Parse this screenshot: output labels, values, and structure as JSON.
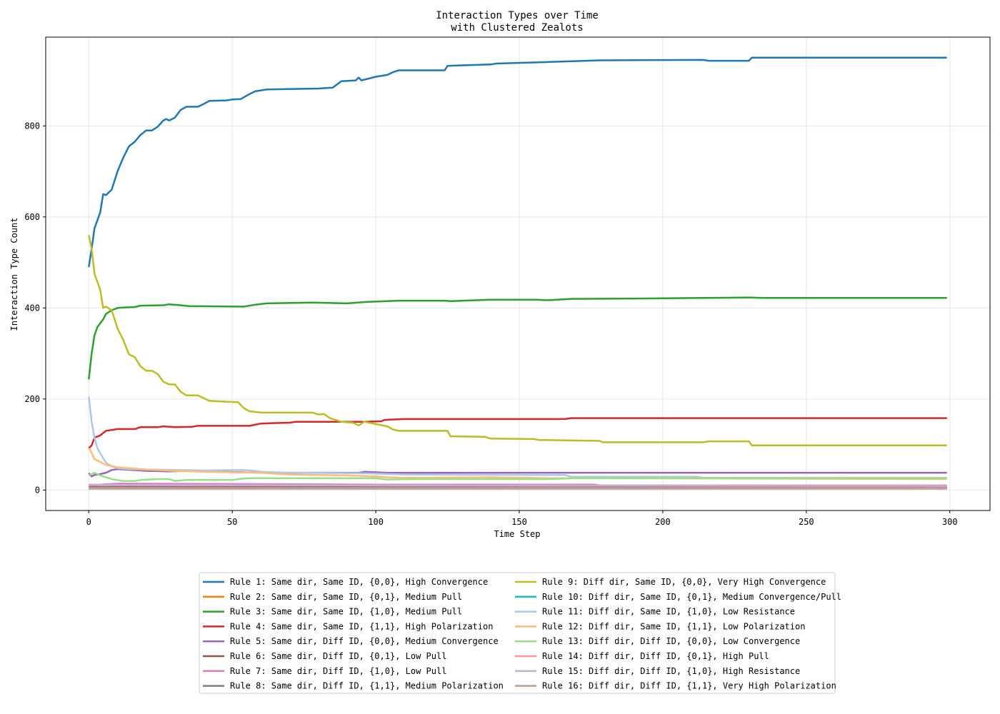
{
  "chart_data": {
    "type": "line",
    "title": [
      "Interaction Types over Time",
      "with Clustered Zealots"
    ],
    "xlabel": "Time Step",
    "ylabel": "Interaction Type Count",
    "xlim": [
      -15,
      314
    ],
    "ylim": [
      -45,
      995
    ],
    "xticks": [
      0,
      50,
      100,
      150,
      200,
      250,
      300
    ],
    "yticks": [
      0,
      200,
      400,
      600,
      800
    ],
    "grid": true,
    "legend_position": "bottom-center, 2 columns",
    "series": [
      {
        "name": "Rule 1: Same dir, Same ID, {0,0}, High Convergence",
        "color": "#1f77b4",
        "points": [
          [
            0,
            490
          ],
          [
            1,
            530
          ],
          [
            2,
            575
          ],
          [
            4,
            610
          ],
          [
            5,
            650
          ],
          [
            6,
            648
          ],
          [
            8,
            660
          ],
          [
            10,
            700
          ],
          [
            12,
            730
          ],
          [
            14,
            755
          ],
          [
            16,
            765
          ],
          [
            18,
            780
          ],
          [
            20,
            790
          ],
          [
            22,
            790
          ],
          [
            24,
            798
          ],
          [
            26,
            812
          ],
          [
            27,
            815
          ],
          [
            28,
            812
          ],
          [
            30,
            818
          ],
          [
            32,
            835
          ],
          [
            34,
            842
          ],
          [
            38,
            842
          ],
          [
            40,
            848
          ],
          [
            42,
            855
          ],
          [
            48,
            856
          ],
          [
            50,
            858
          ],
          [
            53,
            859
          ],
          [
            56,
            870
          ],
          [
            58,
            876
          ],
          [
            62,
            880
          ],
          [
            80,
            882
          ],
          [
            85,
            884
          ],
          [
            88,
            898
          ],
          [
            93,
            900
          ],
          [
            94,
            906
          ],
          [
            95,
            900
          ],
          [
            97,
            903
          ],
          [
            100,
            908
          ],
          [
            104,
            912
          ],
          [
            106,
            918
          ],
          [
            108,
            922
          ],
          [
            124,
            922
          ],
          [
            125,
            932
          ],
          [
            140,
            935
          ],
          [
            142,
            937
          ],
          [
            158,
            940
          ],
          [
            178,
            944
          ],
          [
            214,
            945
          ],
          [
            216,
            943
          ],
          [
            230,
            943
          ],
          [
            231,
            950
          ],
          [
            299,
            950
          ]
        ]
      },
      {
        "name": "Rule 2: Same dir, Same ID, {0,1}, Medium Pull",
        "color": "#ff7f0e",
        "points": [
          [
            0,
            5
          ],
          [
            299,
            5
          ]
        ]
      },
      {
        "name": "Rule 3: Same dir, Same ID, {1,0}, Medium Pull",
        "color": "#2ca02c",
        "points": [
          [
            0,
            243
          ],
          [
            1,
            300
          ],
          [
            2,
            340
          ],
          [
            3,
            358
          ],
          [
            5,
            375
          ],
          [
            6,
            387
          ],
          [
            8,
            395
          ],
          [
            10,
            400
          ],
          [
            12,
            401
          ],
          [
            16,
            402
          ],
          [
            18,
            405
          ],
          [
            26,
            406
          ],
          [
            28,
            408
          ],
          [
            32,
            406
          ],
          [
            35,
            404
          ],
          [
            54,
            403
          ],
          [
            58,
            407
          ],
          [
            62,
            410
          ],
          [
            78,
            412
          ],
          [
            90,
            410
          ],
          [
            96,
            413
          ],
          [
            104,
            415
          ],
          [
            108,
            416
          ],
          [
            124,
            416
          ],
          [
            126,
            415
          ],
          [
            140,
            418
          ],
          [
            156,
            418
          ],
          [
            160,
            417
          ],
          [
            168,
            420
          ],
          [
            198,
            421
          ],
          [
            214,
            422
          ],
          [
            230,
            423
          ],
          [
            235,
            422
          ],
          [
            299,
            422
          ]
        ]
      },
      {
        "name": "Rule 4: Same dir, Same ID, {1,1}, High Polarization",
        "color": "#d62728",
        "points": [
          [
            0,
            92
          ],
          [
            1,
            98
          ],
          [
            2,
            115
          ],
          [
            4,
            120
          ],
          [
            6,
            130
          ],
          [
            8,
            132
          ],
          [
            10,
            134
          ],
          [
            16,
            134
          ],
          [
            18,
            138
          ],
          [
            24,
            138
          ],
          [
            26,
            140
          ],
          [
            30,
            138
          ],
          [
            36,
            139
          ],
          [
            38,
            141
          ],
          [
            56,
            141
          ],
          [
            60,
            146
          ],
          [
            64,
            147
          ],
          [
            70,
            148
          ],
          [
            72,
            150
          ],
          [
            96,
            150
          ],
          [
            102,
            151
          ],
          [
            103,
            154
          ],
          [
            106,
            155
          ],
          [
            110,
            156
          ],
          [
            166,
            156
          ],
          [
            168,
            158
          ],
          [
            299,
            158
          ]
        ]
      },
      {
        "name": "Rule 5: Same dir, Diff ID, {0,0}, Medium Convergence",
        "color": "#9467bd",
        "points": [
          [
            0,
            37
          ],
          [
            1,
            30
          ],
          [
            2,
            33
          ],
          [
            4,
            35
          ],
          [
            6,
            38
          ],
          [
            8,
            44
          ],
          [
            10,
            46
          ],
          [
            20,
            42
          ],
          [
            28,
            41
          ],
          [
            36,
            42
          ],
          [
            60,
            38
          ],
          [
            94,
            38
          ],
          [
            96,
            40
          ],
          [
            104,
            38
          ],
          [
            299,
            38
          ]
        ]
      },
      {
        "name": "Rule 6: Same dir, Diff ID, {0,1}, Low Pull",
        "color": "#8c564b",
        "points": [
          [
            0,
            7
          ],
          [
            299,
            7
          ]
        ]
      },
      {
        "name": "Rule 7: Same dir, Diff ID, {1,0}, Low Pull",
        "color": "#e377c2",
        "points": [
          [
            0,
            10
          ],
          [
            4,
            12
          ],
          [
            10,
            14
          ],
          [
            60,
            13
          ],
          [
            100,
            12
          ],
          [
            176,
            12
          ],
          [
            178,
            10
          ],
          [
            299,
            10
          ]
        ]
      },
      {
        "name": "Rule 8: Same dir, Diff ID, {1,1}, Medium Polarization",
        "color": "#7f7f7f",
        "points": [
          [
            0,
            6
          ],
          [
            94,
            6
          ],
          [
            96,
            8
          ],
          [
            299,
            8
          ]
        ]
      },
      {
        "name": "Rule 9: Diff dir, Same ID, {0,0}, Very High Convergence",
        "color": "#bcbd22",
        "points": [
          [
            0,
            560
          ],
          [
            1,
            530
          ],
          [
            2,
            475
          ],
          [
            4,
            440
          ],
          [
            5,
            400
          ],
          [
            6,
            403
          ],
          [
            8,
            395
          ],
          [
            10,
            355
          ],
          [
            12,
            330
          ],
          [
            14,
            298
          ],
          [
            16,
            292
          ],
          [
            18,
            272
          ],
          [
            20,
            262
          ],
          [
            22,
            262
          ],
          [
            24,
            255
          ],
          [
            26,
            238
          ],
          [
            28,
            232
          ],
          [
            30,
            232
          ],
          [
            32,
            216
          ],
          [
            34,
            208
          ],
          [
            38,
            208
          ],
          [
            42,
            196
          ],
          [
            48,
            194
          ],
          [
            52,
            193
          ],
          [
            54,
            180
          ],
          [
            56,
            173
          ],
          [
            60,
            170
          ],
          [
            78,
            170
          ],
          [
            80,
            166
          ],
          [
            82,
            167
          ],
          [
            84,
            158
          ],
          [
            88,
            150
          ],
          [
            92,
            148
          ],
          [
            94,
            142
          ],
          [
            96,
            150
          ],
          [
            100,
            145
          ],
          [
            104,
            140
          ],
          [
            106,
            133
          ],
          [
            108,
            130
          ],
          [
            125,
            130
          ],
          [
            126,
            118
          ],
          [
            138,
            117
          ],
          [
            140,
            113
          ],
          [
            155,
            112
          ],
          [
            157,
            110
          ],
          [
            178,
            108
          ],
          [
            179,
            105
          ],
          [
            214,
            105
          ],
          [
            216,
            107
          ],
          [
            230,
            107
          ],
          [
            231,
            98
          ],
          [
            299,
            98
          ]
        ]
      },
      {
        "name": "Rule 10: Diff dir, Same ID, {0,1}, Medium Convergence/Pull",
        "color": "#17becf",
        "points": [
          [
            0,
            3
          ],
          [
            299,
            3
          ]
        ]
      },
      {
        "name": "Rule 11: Diff dir, Same ID, {1,0}, Low Resistance",
        "color": "#aec7e8",
        "points": [
          [
            0,
            205
          ],
          [
            1,
            150
          ],
          [
            2,
            115
          ],
          [
            3,
            92
          ],
          [
            5,
            70
          ],
          [
            6,
            60
          ],
          [
            8,
            52
          ],
          [
            10,
            48
          ],
          [
            14,
            46
          ],
          [
            20,
            45
          ],
          [
            30,
            44
          ],
          [
            40,
            43
          ],
          [
            54,
            44
          ],
          [
            58,
            42
          ],
          [
            60,
            40
          ],
          [
            70,
            38
          ],
          [
            94,
            37
          ],
          [
            100,
            36
          ],
          [
            110,
            34
          ],
          [
            166,
            33
          ],
          [
            168,
            29
          ],
          [
            212,
            29
          ],
          [
            214,
            27
          ],
          [
            299,
            27
          ]
        ]
      },
      {
        "name": "Rule 12: Diff dir, Same ID, {1,1}, Low Polarization",
        "color": "#ffbb78",
        "points": [
          [
            0,
            92
          ],
          [
            1,
            82
          ],
          [
            2,
            68
          ],
          [
            4,
            62
          ],
          [
            6,
            55
          ],
          [
            10,
            50
          ],
          [
            20,
            45
          ],
          [
            30,
            42
          ],
          [
            40,
            40
          ],
          [
            60,
            38
          ],
          [
            70,
            34
          ],
          [
            90,
            32
          ],
          [
            100,
            30
          ],
          [
            104,
            28
          ],
          [
            110,
            27
          ],
          [
            140,
            28
          ],
          [
            160,
            26
          ],
          [
            299,
            24
          ]
        ]
      },
      {
        "name": "Rule 13: Diff dir, Diff ID, {0,0}, Low Convergence",
        "color": "#98df8a",
        "points": [
          [
            0,
            32
          ],
          [
            2,
            38
          ],
          [
            4,
            32
          ],
          [
            6,
            28
          ],
          [
            8,
            24
          ],
          [
            10,
            22
          ],
          [
            12,
            20
          ],
          [
            16,
            20
          ],
          [
            18,
            22
          ],
          [
            24,
            24
          ],
          [
            28,
            24
          ],
          [
            30,
            20
          ],
          [
            34,
            22
          ],
          [
            50,
            22
          ],
          [
            52,
            24
          ],
          [
            56,
            26
          ],
          [
            100,
            26
          ],
          [
            104,
            23
          ],
          [
            112,
            24
          ],
          [
            160,
            24
          ],
          [
            170,
            26
          ],
          [
            299,
            26
          ]
        ]
      },
      {
        "name": "Rule 14: Diff dir, Diff ID, {0,1}, High Pull",
        "color": "#ff9896",
        "points": [
          [
            0,
            4
          ],
          [
            299,
            4
          ]
        ]
      },
      {
        "name": "Rule 15: Diff dir, Diff ID, {1,0}, High Resistance",
        "color": "#c5b0d5",
        "points": [
          [
            0,
            12
          ],
          [
            10,
            11
          ],
          [
            100,
            10
          ],
          [
            299,
            9
          ]
        ]
      },
      {
        "name": "Rule 16: Diff dir, Diff ID, {1,1}, Very High Polarization",
        "color": "#c49c94",
        "points": [
          [
            0,
            3
          ],
          [
            299,
            3
          ]
        ]
      }
    ]
  }
}
